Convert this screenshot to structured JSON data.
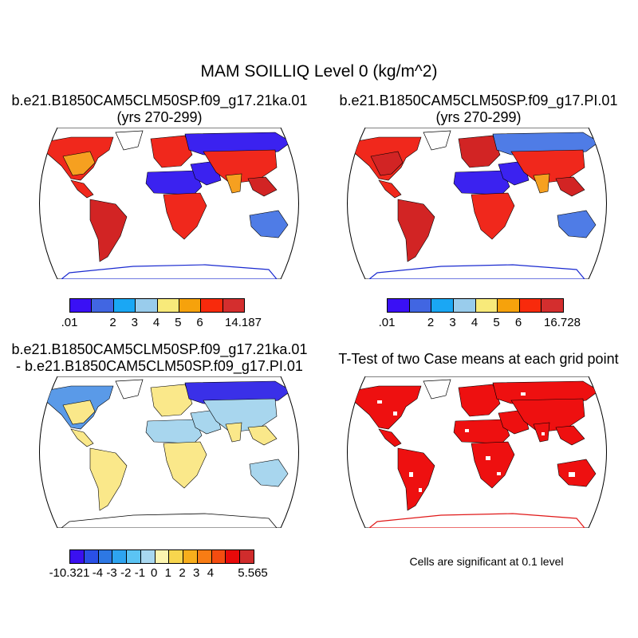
{
  "main_title": "MAM SOILLIQ Level 0 (kg/m^2)",
  "panels": {
    "tl": {
      "title1": "b.e21.B1850CAM5CLM50SP.f09_g17.21ka.01",
      "title2": "(yrs 270-299)"
    },
    "tr": {
      "title1": "b.e21.B1850CAM5CLM50SP.f09_g17.PI.01",
      "title2": "(yrs 270-299)"
    },
    "bl": {
      "title1": "b.e21.B1850CAM5CLM50SP.f09_g17.21ka.01",
      "title2": "- b.e21.B1850CAM5CLM50SP.f09_g17.PI.01"
    },
    "br": {
      "title1": "T-Test of two Case means at each grid point"
    }
  },
  "colorbars": {
    "tl": {
      "colors": [
        "#3a10f5",
        "#4166e2",
        "#1aa7f4",
        "#99ccec",
        "#f8ea7a",
        "#f6a20c",
        "#f82a0c",
        "#d42e2e"
      ],
      "labels": [
        ".01",
        "2",
        "3",
        "4",
        "5",
        "6",
        "14.187"
      ],
      "label_edges": [
        0,
        2,
        3,
        4,
        5,
        6,
        8
      ]
    },
    "tr": {
      "colors": [
        "#3a10f5",
        "#4166e2",
        "#1aa7f4",
        "#99ccec",
        "#f8ea7a",
        "#f6a20c",
        "#f82a0c",
        "#d42e2e"
      ],
      "labels": [
        ".01",
        "2",
        "3",
        "4",
        "5",
        "6",
        "16.728"
      ],
      "label_edges": [
        0,
        2,
        3,
        4,
        5,
        6,
        8
      ]
    },
    "bl": {
      "colors": [
        "#3a10f0",
        "#2a50e6",
        "#2d78e4",
        "#2ea4f0",
        "#5bc4f4",
        "#a8d8f0",
        "#fcf5b0",
        "#f8d64e",
        "#f8ae1c",
        "#f87c14",
        "#f44c10",
        "#e80a0a",
        "#d02c2c"
      ],
      "labels": [
        "-10.321",
        "-4",
        "-3",
        "-2",
        "-1",
        "0",
        "1",
        "2",
        "3",
        "4",
        "5.565"
      ],
      "label_edges": [
        0,
        2,
        3,
        4,
        5,
        6,
        7,
        8,
        9,
        10,
        13
      ]
    }
  },
  "note": "Cells are significant at 0.1 level",
  "map_colors": {
    "dry": "#3b22f0",
    "mid_blue": "#4f7ce6",
    "wet": "#f0281c",
    "orange": "#f6a020",
    "wet_dark": "#d22424",
    "diff_pos": "#fae88a",
    "diff_neutral": "#a8d6ee",
    "diff_neg": "#3a30e8",
    "diff_mid": "#5a9ae8",
    "ttest": "#ee1010"
  }
}
